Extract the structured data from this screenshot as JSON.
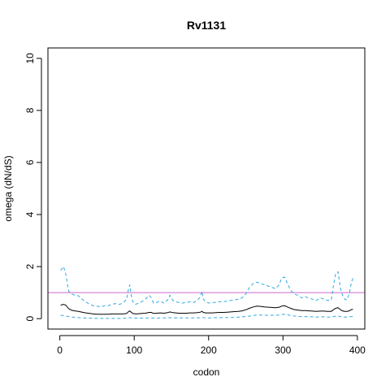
{
  "chart_data": {
    "type": "line",
    "title": "Rv1131",
    "xlabel": "codon",
    "ylabel": "omega (dN/dS)",
    "xlim": [
      -16,
      410
    ],
    "ylim": [
      -0.4,
      10.4
    ],
    "xticks": [
      0,
      100,
      200,
      300,
      400
    ],
    "yticks": [
      0,
      2,
      4,
      6,
      8,
      10
    ],
    "grid": false,
    "reference_line": {
      "y": 1,
      "color": "#CC66CC"
    },
    "series": [
      {
        "role": "upper-ci",
        "color": "#33A8E0",
        "style": "dashed",
        "x": [
          1,
          5,
          8,
          12,
          16,
          20,
          25,
          30,
          35,
          40,
          45,
          50,
          55,
          60,
          65,
          70,
          75,
          80,
          85,
          90,
          92,
          94,
          96,
          98,
          102,
          106,
          110,
          115,
          120,
          123,
          126,
          130,
          135,
          140,
          145,
          148,
          152,
          156,
          160,
          165,
          170,
          175,
          180,
          185,
          189,
          191,
          193,
          196,
          200,
          205,
          210,
          215,
          220,
          225,
          230,
          235,
          240,
          245,
          250,
          255,
          260,
          265,
          270,
          275,
          280,
          285,
          290,
          295,
          298,
          302,
          306,
          310,
          315,
          320,
          325,
          330,
          335,
          340,
          345,
          350,
          355,
          360,
          365,
          368,
          371,
          374,
          377,
          380,
          383,
          386,
          389,
          392,
          394
        ],
        "y": [
          1.85,
          2.0,
          1.7,
          1.05,
          0.95,
          0.9,
          0.88,
          0.75,
          0.65,
          0.55,
          0.5,
          0.48,
          0.45,
          0.5,
          0.5,
          0.55,
          0.58,
          0.55,
          0.6,
          0.75,
          1.1,
          1.3,
          0.9,
          0.65,
          0.55,
          0.6,
          0.65,
          0.75,
          0.9,
          0.8,
          0.6,
          0.62,
          0.68,
          0.6,
          0.72,
          0.9,
          0.7,
          0.65,
          0.62,
          0.6,
          0.62,
          0.65,
          0.62,
          0.7,
          0.85,
          1.05,
          0.75,
          0.65,
          0.6,
          0.62,
          0.62,
          0.65,
          0.65,
          0.68,
          0.7,
          0.72,
          0.75,
          0.8,
          0.95,
          1.2,
          1.35,
          1.4,
          1.35,
          1.3,
          1.25,
          1.2,
          1.15,
          1.3,
          1.55,
          1.6,
          1.35,
          1.1,
          0.95,
          0.9,
          0.8,
          0.85,
          0.78,
          0.75,
          0.7,
          0.8,
          0.75,
          0.7,
          0.72,
          1.3,
          1.75,
          1.8,
          1.2,
          0.9,
          0.75,
          0.72,
          0.95,
          1.4,
          1.55
        ]
      },
      {
        "role": "estimate",
        "color": "#000000",
        "style": "solid",
        "x": [
          1,
          5,
          8,
          12,
          16,
          20,
          25,
          30,
          35,
          40,
          45,
          50,
          55,
          60,
          65,
          70,
          75,
          80,
          85,
          90,
          92,
          94,
          96,
          98,
          102,
          106,
          110,
          115,
          120,
          123,
          126,
          130,
          135,
          140,
          145,
          148,
          152,
          156,
          160,
          165,
          170,
          175,
          180,
          185,
          189,
          191,
          193,
          196,
          200,
          205,
          210,
          215,
          220,
          225,
          230,
          235,
          240,
          245,
          250,
          255,
          260,
          265,
          270,
          275,
          280,
          285,
          290,
          295,
          298,
          302,
          306,
          310,
          315,
          320,
          325,
          330,
          335,
          340,
          345,
          350,
          355,
          360,
          365,
          368,
          371,
          374,
          377,
          380,
          383,
          386,
          389,
          392,
          394
        ],
        "y": [
          0.52,
          0.55,
          0.52,
          0.38,
          0.32,
          0.3,
          0.28,
          0.25,
          0.22,
          0.2,
          0.18,
          0.17,
          0.17,
          0.17,
          0.17,
          0.18,
          0.18,
          0.18,
          0.18,
          0.2,
          0.26,
          0.3,
          0.25,
          0.2,
          0.18,
          0.19,
          0.2,
          0.21,
          0.24,
          0.24,
          0.2,
          0.21,
          0.22,
          0.21,
          0.23,
          0.26,
          0.23,
          0.22,
          0.21,
          0.21,
          0.21,
          0.22,
          0.22,
          0.23,
          0.25,
          0.28,
          0.24,
          0.22,
          0.22,
          0.22,
          0.23,
          0.24,
          0.24,
          0.25,
          0.26,
          0.27,
          0.28,
          0.3,
          0.34,
          0.4,
          0.45,
          0.48,
          0.47,
          0.45,
          0.44,
          0.43,
          0.42,
          0.44,
          0.48,
          0.5,
          0.45,
          0.4,
          0.35,
          0.33,
          0.31,
          0.31,
          0.3,
          0.29,
          0.28,
          0.29,
          0.29,
          0.28,
          0.28,
          0.35,
          0.4,
          0.42,
          0.35,
          0.3,
          0.28,
          0.28,
          0.3,
          0.35,
          0.36
        ]
      },
      {
        "role": "lower-ci",
        "color": "#33A8E0",
        "style": "dashed",
        "x": [
          1,
          5,
          8,
          12,
          16,
          20,
          25,
          30,
          35,
          40,
          45,
          50,
          55,
          60,
          65,
          70,
          75,
          80,
          85,
          90,
          92,
          94,
          96,
          98,
          102,
          106,
          110,
          115,
          120,
          123,
          126,
          130,
          135,
          140,
          145,
          148,
          152,
          156,
          160,
          165,
          170,
          175,
          180,
          185,
          189,
          191,
          193,
          196,
          200,
          205,
          210,
          215,
          220,
          225,
          230,
          235,
          240,
          245,
          250,
          255,
          260,
          265,
          270,
          275,
          280,
          285,
          290,
          295,
          298,
          302,
          306,
          310,
          315,
          320,
          325,
          330,
          335,
          340,
          345,
          350,
          355,
          360,
          365,
          368,
          371,
          374,
          377,
          380,
          383,
          386,
          389,
          392,
          394
        ],
        "y": [
          0.12,
          0.12,
          0.1,
          0.08,
          0.06,
          0.05,
          0.04,
          0.03,
          0.02,
          0.02,
          0.01,
          0.01,
          0.01,
          0.01,
          0.01,
          0.01,
          0.01,
          0.01,
          0.01,
          0.02,
          0.03,
          0.04,
          0.03,
          0.02,
          0.02,
          0.02,
          0.02,
          0.02,
          0.03,
          0.03,
          0.02,
          0.02,
          0.03,
          0.03,
          0.03,
          0.04,
          0.03,
          0.03,
          0.03,
          0.03,
          0.03,
          0.03,
          0.03,
          0.03,
          0.04,
          0.05,
          0.04,
          0.03,
          0.03,
          0.03,
          0.04,
          0.04,
          0.04,
          0.04,
          0.05,
          0.05,
          0.06,
          0.07,
          0.08,
          0.1,
          0.12,
          0.14,
          0.14,
          0.13,
          0.13,
          0.13,
          0.13,
          0.14,
          0.16,
          0.17,
          0.15,
          0.12,
          0.1,
          0.09,
          0.08,
          0.08,
          0.07,
          0.07,
          0.06,
          0.07,
          0.07,
          0.06,
          0.06,
          0.08,
          0.1,
          0.11,
          0.08,
          0.07,
          0.06,
          0.06,
          0.07,
          0.08,
          0.08
        ]
      }
    ]
  }
}
